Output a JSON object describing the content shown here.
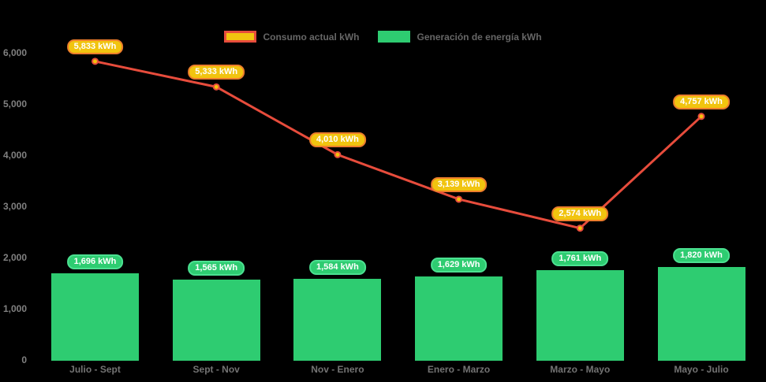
{
  "chart_data": {
    "type": "combo",
    "background": "#000000",
    "grid": false,
    "legend_position": "top",
    "axis_text_color": "#808080",
    "legend_text_color": "#666666",
    "ylim": [
      0,
      6000
    ],
    "yticks": [
      {
        "label": "6,000",
        "value": 6000
      },
      {
        "label": "5,000",
        "value": 5000
      },
      {
        "label": "4,000",
        "value": 4000
      },
      {
        "label": "3,000",
        "value": 3000
      },
      {
        "label": "2,000",
        "value": 2000
      },
      {
        "label": "1,000",
        "value": 1000
      },
      {
        "label": "0",
        "value": 0
      }
    ],
    "categories": [
      "Julio - Sept",
      "Sept - Nov",
      "Nov - Enero",
      "Enero - Marzo",
      "Marzo - Mayo",
      "Mayo - Julio"
    ],
    "series": [
      {
        "name": "Consumo actual kWh",
        "type": "line",
        "color": "#e74c3c",
        "point_color": "#f4c20d",
        "label_bg": "#f1c40f",
        "label_border": "#ed7d2b",
        "values": [
          5833,
          5333,
          4010,
          3139,
          2574,
          4757
        ],
        "labels": [
          "5,833 kWh",
          "5,333 kWh",
          "4,010 kWh",
          "3,139 kWh",
          "2,574 kWh",
          "4,757 kWh"
        ]
      },
      {
        "name": "Generación de energía kWh",
        "type": "bar",
        "color": "#2ecc71",
        "label_bg": "#2ecc71",
        "label_border": "#4be191",
        "values": [
          1696,
          1565,
          1584,
          1629,
          1761,
          1820
        ],
        "labels": [
          "1,696 kWh",
          "1,565 kWh",
          "1,584 kWh",
          "1,629 kWh",
          "1,761 kWh",
          "1,820 kWh"
        ]
      }
    ]
  }
}
